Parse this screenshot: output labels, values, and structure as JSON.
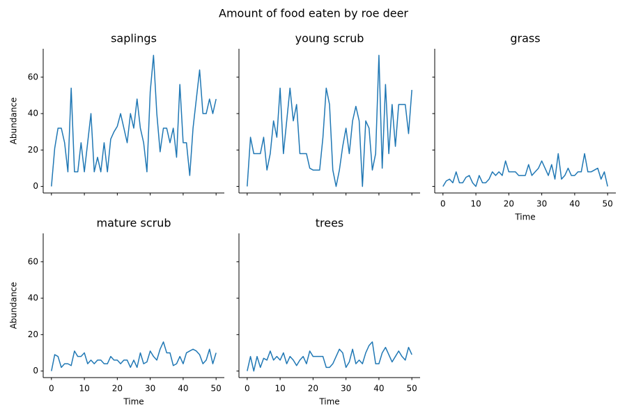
{
  "title": "Amount of food eaten by roe deer",
  "chart_data": [
    {
      "type": "line",
      "title": "saplings",
      "ylabel": "Abundance",
      "color": "#1f77b4",
      "x_tick_labels": false,
      "y_tick_labels": true,
      "x": [
        0,
        1,
        2,
        3,
        4,
        5,
        6,
        7,
        8,
        9,
        10,
        11,
        12,
        13,
        14,
        15,
        16,
        17,
        18,
        19,
        20,
        21,
        22,
        23,
        24,
        25,
        26,
        27,
        28,
        29,
        30,
        31,
        32,
        33,
        34,
        35,
        36,
        37,
        38,
        39,
        40,
        41,
        42,
        43,
        44,
        45,
        46,
        47,
        48,
        49,
        50
      ],
      "values": [
        0,
        21,
        32,
        32,
        24,
        8,
        54,
        8,
        8,
        24,
        8,
        24,
        40,
        8,
        16,
        8,
        24,
        8,
        26,
        30,
        33,
        40,
        32,
        24,
        40,
        32,
        48,
        32,
        24,
        8,
        52,
        72,
        40,
        19,
        32,
        32,
        24,
        32,
        16,
        56,
        24,
        24,
        6,
        32,
        48,
        64,
        40,
        40,
        48,
        40,
        48
      ],
      "xlim": [
        -2.5,
        52.5
      ],
      "ylim": [
        -3.6,
        75.6
      ],
      "xticks": [
        0,
        10,
        20,
        30,
        40,
        50
      ],
      "yticks": [
        0,
        20,
        40,
        60
      ]
    },
    {
      "type": "line",
      "title": "young scrub",
      "color": "#1f77b4",
      "x_tick_labels": false,
      "y_tick_labels": false,
      "x": [
        0,
        1,
        2,
        3,
        4,
        5,
        6,
        7,
        8,
        9,
        10,
        11,
        12,
        13,
        14,
        15,
        16,
        17,
        18,
        19,
        20,
        21,
        22,
        23,
        24,
        25,
        26,
        27,
        28,
        29,
        30,
        31,
        32,
        33,
        34,
        35,
        36,
        37,
        38,
        39,
        40,
        41,
        42,
        43,
        44,
        45,
        46,
        47,
        48,
        49,
        50
      ],
      "values": [
        0,
        27,
        18,
        18,
        18,
        27,
        9,
        18,
        36,
        27,
        54,
        18,
        36,
        54,
        36,
        45,
        18,
        18,
        18,
        10,
        9,
        9,
        9,
        27,
        54,
        45,
        9,
        0,
        9,
        22,
        32,
        18,
        36,
        44,
        36,
        0,
        36,
        32,
        9,
        18,
        72,
        10,
        56,
        18,
        45,
        22,
        45,
        45,
        45,
        29,
        53
      ],
      "xlim": [
        -2.5,
        52.5
      ],
      "ylim": [
        -3.6,
        75.6
      ],
      "xticks": [
        0,
        10,
        20,
        30,
        40,
        50
      ],
      "yticks": [
        0,
        20,
        40,
        60
      ]
    },
    {
      "type": "line",
      "title": "grass",
      "xlabel": "Time",
      "color": "#1f77b4",
      "x_tick_labels": true,
      "y_tick_labels": false,
      "x": [
        0,
        1,
        2,
        3,
        4,
        5,
        6,
        7,
        8,
        9,
        10,
        11,
        12,
        13,
        14,
        15,
        16,
        17,
        18,
        19,
        20,
        21,
        22,
        23,
        24,
        25,
        26,
        27,
        28,
        29,
        30,
        31,
        32,
        33,
        34,
        35,
        36,
        37,
        38,
        39,
        40,
        41,
        42,
        43,
        44,
        45,
        46,
        47,
        48,
        49,
        50
      ],
      "values": [
        0,
        3,
        4,
        2,
        8,
        2,
        2,
        5,
        6,
        2,
        0,
        6,
        2,
        2,
        4,
        8,
        6,
        8,
        6,
        14,
        8,
        8,
        8,
        6,
        6,
        6,
        12,
        6,
        8,
        10,
        14,
        10,
        6,
        12,
        4,
        18,
        4,
        6,
        10,
        6,
        6,
        8,
        8,
        18,
        8,
        8,
        9,
        10,
        4,
        8,
        0
      ],
      "xlim": [
        -2.5,
        52.5
      ],
      "ylim": [
        -3.6,
        75.6
      ],
      "xticks": [
        0,
        10,
        20,
        30,
        40,
        50
      ],
      "yticks": [
        0,
        20,
        40,
        60
      ]
    },
    {
      "type": "line",
      "title": "mature scrub",
      "xlabel": "Time",
      "ylabel": "Abundance",
      "color": "#1f77b4",
      "x_tick_labels": true,
      "y_tick_labels": true,
      "x": [
        0,
        1,
        2,
        3,
        4,
        5,
        6,
        7,
        8,
        9,
        10,
        11,
        12,
        13,
        14,
        15,
        16,
        17,
        18,
        19,
        20,
        21,
        22,
        23,
        24,
        25,
        26,
        27,
        28,
        29,
        30,
        31,
        32,
        33,
        34,
        35,
        36,
        37,
        38,
        39,
        40,
        41,
        42,
        43,
        44,
        45,
        46,
        47,
        48,
        49,
        50
      ],
      "values": [
        0,
        9,
        8,
        2,
        4,
        4,
        3,
        11,
        8,
        8,
        10,
        4,
        6,
        4,
        6,
        6,
        4,
        4,
        8,
        6,
        6,
        4,
        6,
        6,
        2,
        6,
        2,
        10,
        4,
        5,
        11,
        8,
        6,
        12,
        16,
        10,
        10,
        3,
        4,
        8,
        4,
        10,
        11,
        12,
        11,
        9,
        4,
        6,
        12,
        4,
        10
      ],
      "xlim": [
        -2.5,
        52.5
      ],
      "ylim": [
        -3.6,
        75.6
      ],
      "xticks": [
        0,
        10,
        20,
        30,
        40,
        50
      ],
      "yticks": [
        0,
        20,
        40,
        60
      ]
    },
    {
      "type": "line",
      "title": "trees",
      "xlabel": "Time",
      "color": "#1f77b4",
      "x_tick_labels": true,
      "y_tick_labels": false,
      "x": [
        0,
        1,
        2,
        3,
        4,
        5,
        6,
        7,
        8,
        9,
        10,
        11,
        12,
        13,
        14,
        15,
        16,
        17,
        18,
        19,
        20,
        21,
        22,
        23,
        24,
        25,
        26,
        27,
        28,
        29,
        30,
        31,
        32,
        33,
        34,
        35,
        36,
        37,
        38,
        39,
        40,
        41,
        42,
        43,
        44,
        45,
        46,
        47,
        48,
        49,
        50
      ],
      "values": [
        0,
        8,
        0,
        8,
        2,
        7,
        6,
        11,
        6,
        8,
        6,
        10,
        4,
        8,
        6,
        3,
        6,
        8,
        4,
        11,
        8,
        8,
        8,
        8,
        2,
        2,
        4,
        8,
        12,
        10,
        2,
        5,
        12,
        4,
        6,
        4,
        10,
        14,
        16,
        4,
        4,
        10,
        13,
        9,
        5,
        8,
        11,
        8,
        6,
        13,
        9
      ],
      "xlim": [
        -2.5,
        52.5
      ],
      "ylim": [
        -3.6,
        75.6
      ],
      "xticks": [
        0,
        10,
        20,
        30,
        40,
        50
      ],
      "yticks": [
        0,
        20,
        40,
        60
      ]
    }
  ]
}
